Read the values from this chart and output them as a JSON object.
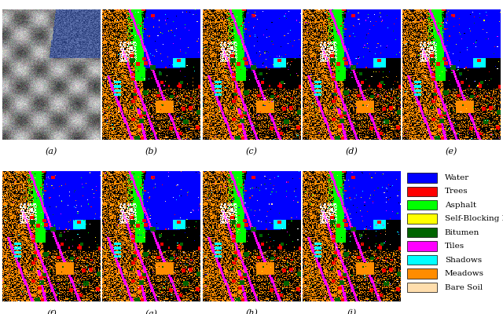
{
  "title": "",
  "figure_size": [
    6.4,
    4.0
  ],
  "dpi": 100,
  "background_color": "#ffffff",
  "subfig_labels": [
    "(a)",
    "(b)",
    "(c)",
    "(d)",
    "(e)",
    "(f)",
    "(g)",
    "(h)",
    "(i)"
  ],
  "legend_items": [
    {
      "label": "Water",
      "color": "#0000ff"
    },
    {
      "label": "Trees",
      "color": "#ff0000"
    },
    {
      "label": "Asphalt",
      "color": "#00ff00"
    },
    {
      "label": "Self-Blocking Bricks",
      "color": "#ffff00"
    },
    {
      "label": "Bitumen",
      "color": "#006400"
    },
    {
      "label": "Tiles",
      "color": "#ff00ff"
    },
    {
      "label": "Shadows",
      "color": "#00ffff"
    },
    {
      "label": "Meadows",
      "color": "#ff8c00"
    },
    {
      "label": "Bare Soil",
      "color": "#ffdead"
    }
  ],
  "label_fontsize": 8,
  "legend_fontsize": 7.5
}
